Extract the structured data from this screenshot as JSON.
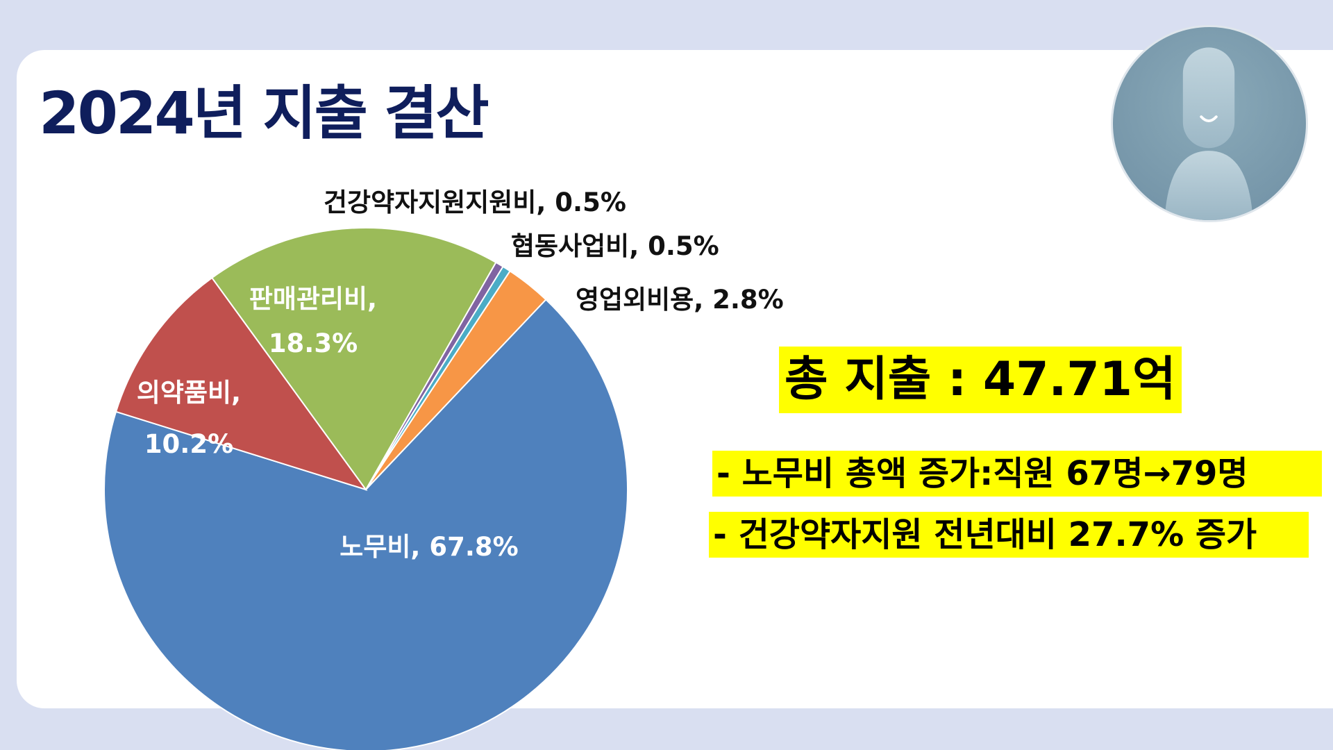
{
  "slide": {
    "title": "2024년 지출 결산",
    "total": "총 지출 : 47.71억",
    "notes": [
      "- 노무비 총액 증가:직원  67명→79명",
      "- 건강약자지원 전년대비 27.7% 증가"
    ]
  },
  "chart_data": {
    "type": "pie",
    "title": "",
    "slices": [
      {
        "name": "노무비",
        "value": 67.8,
        "label": "노무비, 67.8%",
        "color": "#4f81bd"
      },
      {
        "name": "의약품비",
        "value": 10.2,
        "label": "의약품비, 10.2%",
        "color": "#c0504d"
      },
      {
        "name": "판매관리비",
        "value": 18.3,
        "label": "판매관리비, 18.3%",
        "color": "#9bbb59"
      },
      {
        "name": "건강약자지원지원비",
        "value": 0.5,
        "label": "건강약자지원지원비, 0.5%",
        "color": "#8064a2"
      },
      {
        "name": "협동사업비",
        "value": 0.5,
        "label": "협동사업비, 0.5%",
        "color": "#4bacc6"
      },
      {
        "name": "영업외비용",
        "value": 2.8,
        "label": "영업외비용, 2.8%",
        "color": "#f79646"
      }
    ],
    "start_slice": "영업외비용",
    "direction": "clockwise",
    "legend": "none"
  },
  "colors": {
    "background": "#d9dff1",
    "card": "#ffffff",
    "title": "#0f1e5c",
    "highlight": "#ffff00"
  },
  "icons": {
    "avatar": "person-silhouette-icon"
  }
}
